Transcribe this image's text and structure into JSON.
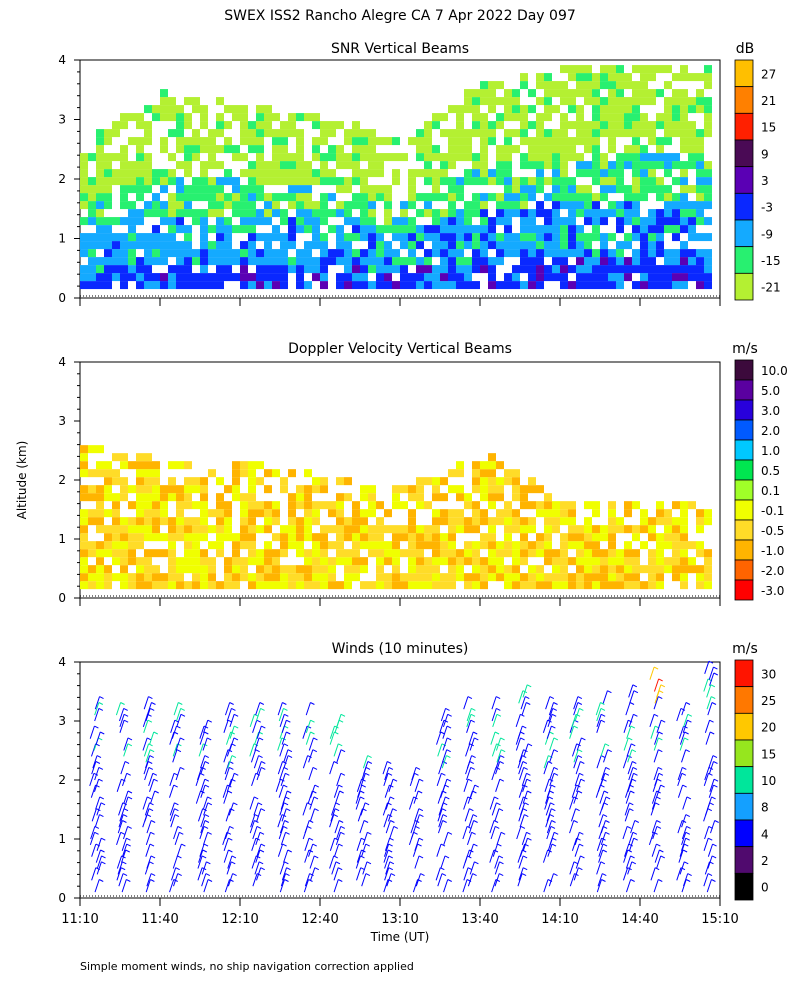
{
  "page": {
    "title": "SWEX ISS2 Rancho Alegre CA   7 Apr 2022 Day 097",
    "footer": "Simple moment winds, no ship navigation correction applied",
    "ylabel": "Altitude (km)",
    "xlabel": "Time (UT)"
  },
  "chart_data": [
    {
      "type": "heatmap",
      "title": "SNR Vertical Beams",
      "colorbar_unit": "dB",
      "ylim": [
        0,
        4
      ],
      "yticks": [
        "0",
        "1",
        "2",
        "3",
        "4"
      ],
      "x_ticks": [
        "11:10",
        "11:40",
        "12:10",
        "12:40",
        "13:10",
        "13:40",
        "14:10",
        "14:40",
        "15:10"
      ],
      "colorbar": [
        {
          "label": "27",
          "color": "#ffbf00"
        },
        {
          "label": "21",
          "color": "#ff8000"
        },
        {
          "label": "15",
          "color": "#ff2000"
        },
        {
          "label": "9",
          "color": "#4a0a55"
        },
        {
          "label": "3",
          "color": "#5a00b4"
        },
        {
          "label": "-3",
          "color": "#0a28ff"
        },
        {
          "label": "-9",
          "color": "#14aaff"
        },
        {
          "label": "-15",
          "color": "#28f070"
        },
        {
          "label": "-21",
          "color": "#b4f032"
        }
      ],
      "profile_summary": [
        {
          "time": "11:10",
          "top_km": 2.6,
          "core_db": -3
        },
        {
          "time": "11:40",
          "top_km": 3.4,
          "core_db": 3
        },
        {
          "time": "12:10",
          "top_km": 3.2,
          "core_db": -3
        },
        {
          "time": "12:40",
          "top_km": 3.0,
          "core_db": -3
        },
        {
          "time": "13:10",
          "top_km": 2.6,
          "core_db": -9
        },
        {
          "time": "13:40",
          "top_km": 3.6,
          "core_db": -9
        },
        {
          "time": "14:10",
          "top_km": 3.8,
          "core_db": -9
        },
        {
          "time": "14:40",
          "top_km": 3.9,
          "core_db": -3
        },
        {
          "time": "15:10",
          "top_km": 3.9,
          "core_db": -3
        }
      ]
    },
    {
      "type": "heatmap",
      "title": "Doppler Velocity Vertical Beams",
      "colorbar_unit": "m/s",
      "ylim": [
        0,
        4
      ],
      "yticks": [
        "0",
        "1",
        "2",
        "3",
        "4"
      ],
      "x_ticks": [
        "11:10",
        "11:40",
        "12:10",
        "12:40",
        "13:10",
        "13:40",
        "14:10",
        "14:40",
        "15:10"
      ],
      "colorbar": [
        {
          "label": "10.0",
          "color": "#3c0a3c"
        },
        {
          "label": "5.0",
          "color": "#5a00a0"
        },
        {
          "label": "3.0",
          "color": "#2800dc"
        },
        {
          "label": "2.0",
          "color": "#005aff"
        },
        {
          "label": "1.0",
          "color": "#00c8ff"
        },
        {
          "label": "0.5",
          "color": "#00e650"
        },
        {
          "label": "0.1",
          "color": "#a0ff28"
        },
        {
          "label": "-0.1",
          "color": "#f0ff00"
        },
        {
          "label": "-0.5",
          "color": "#ffdc28"
        },
        {
          "label": "-1.0",
          "color": "#ffb400"
        },
        {
          "label": "-2.0",
          "color": "#ff6400"
        },
        {
          "label": "-3.0",
          "color": "#ff0000"
        }
      ],
      "profile_summary": [
        {
          "time": "11:10",
          "top_km": 2.5,
          "mean_ms": -0.5
        },
        {
          "time": "11:40",
          "top_km": 2.3,
          "mean_ms": -1.0
        },
        {
          "time": "12:10",
          "top_km": 2.3,
          "mean_ms": -0.5
        },
        {
          "time": "12:40",
          "top_km": 2.0,
          "mean_ms": -0.5
        },
        {
          "time": "13:10",
          "top_km": 1.8,
          "mean_ms": -0.5
        },
        {
          "time": "13:40",
          "top_km": 2.4,
          "mean_ms": -1.0
        },
        {
          "time": "14:10",
          "top_km": 1.6,
          "mean_ms": -0.5
        },
        {
          "time": "14:40",
          "top_km": 1.6,
          "mean_ms": -0.5
        },
        {
          "time": "15:10",
          "top_km": 1.6,
          "mean_ms": -0.5
        }
      ]
    },
    {
      "type": "scatter",
      "title": "Winds (10 minutes)",
      "colorbar_unit": "m/s",
      "ylim": [
        0,
        4
      ],
      "yticks": [
        "0",
        "1",
        "2",
        "3",
        "4"
      ],
      "x_ticks": [
        "11:10",
        "11:40",
        "12:10",
        "12:40",
        "13:10",
        "13:40",
        "14:10",
        "14:40",
        "15:10"
      ],
      "colorbar": [
        {
          "label": "30",
          "color": "#ff1400"
        },
        {
          "label": "25",
          "color": "#ff7800"
        },
        {
          "label": "20",
          "color": "#ffc800"
        },
        {
          "label": "15",
          "color": "#96e61e"
        },
        {
          "label": "10",
          "color": "#00e69b"
        },
        {
          "label": "8",
          "color": "#14a0ff"
        },
        {
          "label": "4",
          "color": "#0000ff"
        },
        {
          "label": "2",
          "color": "#500a6e"
        },
        {
          "label": "0",
          "color": "#000000"
        }
      ],
      "profiles": [
        {
          "time": "11:15",
          "top_km": 3.3,
          "mean_speed_ms": 5
        },
        {
          "time": "11:25",
          "top_km": 3.2,
          "mean_speed_ms": 5
        },
        {
          "time": "11:35",
          "top_km": 3.3,
          "mean_speed_ms": 7
        },
        {
          "time": "11:45",
          "top_km": 3.3,
          "mean_speed_ms": 6
        },
        {
          "time": "11:55",
          "top_km": 3.0,
          "mean_speed_ms": 5
        },
        {
          "time": "12:05",
          "top_km": 3.2,
          "mean_speed_ms": 5
        },
        {
          "time": "12:15",
          "top_km": 3.2,
          "mean_speed_ms": 6
        },
        {
          "time": "12:25",
          "top_km": 3.2,
          "mean_speed_ms": 5
        },
        {
          "time": "12:35",
          "top_km": 3.2,
          "mean_speed_ms": 5
        },
        {
          "time": "12:45",
          "top_km": 3.1,
          "mean_speed_ms": 5
        },
        {
          "time": "12:55",
          "top_km": 2.3,
          "mean_speed_ms": 5
        },
        {
          "time": "13:05",
          "top_km": 2.2,
          "mean_speed_ms": 5
        },
        {
          "time": "13:15",
          "top_km": 2.1,
          "mean_speed_ms": 5
        },
        {
          "time": "13:25",
          "top_km": 3.2,
          "mean_speed_ms": 4
        },
        {
          "time": "13:35",
          "top_km": 3.3,
          "mean_speed_ms": 5
        },
        {
          "time": "13:45",
          "top_km": 3.4,
          "mean_speed_ms": 5
        },
        {
          "time": "13:55",
          "top_km": 3.5,
          "mean_speed_ms": 6
        },
        {
          "time": "14:05",
          "top_km": 3.3,
          "mean_speed_ms": 5
        },
        {
          "time": "14:15",
          "top_km": 3.3,
          "mean_speed_ms": 5
        },
        {
          "time": "14:25",
          "top_km": 3.4,
          "mean_speed_ms": 5
        },
        {
          "time": "14:35",
          "top_km": 3.5,
          "mean_speed_ms": 5
        },
        {
          "time": "14:45",
          "top_km": 3.9,
          "mean_speed_ms": 8
        },
        {
          "time": "14:55",
          "top_km": 3.3,
          "mean_speed_ms": 5
        },
        {
          "time": "15:05",
          "top_km": 3.9,
          "mean_speed_ms": 5
        }
      ]
    }
  ]
}
